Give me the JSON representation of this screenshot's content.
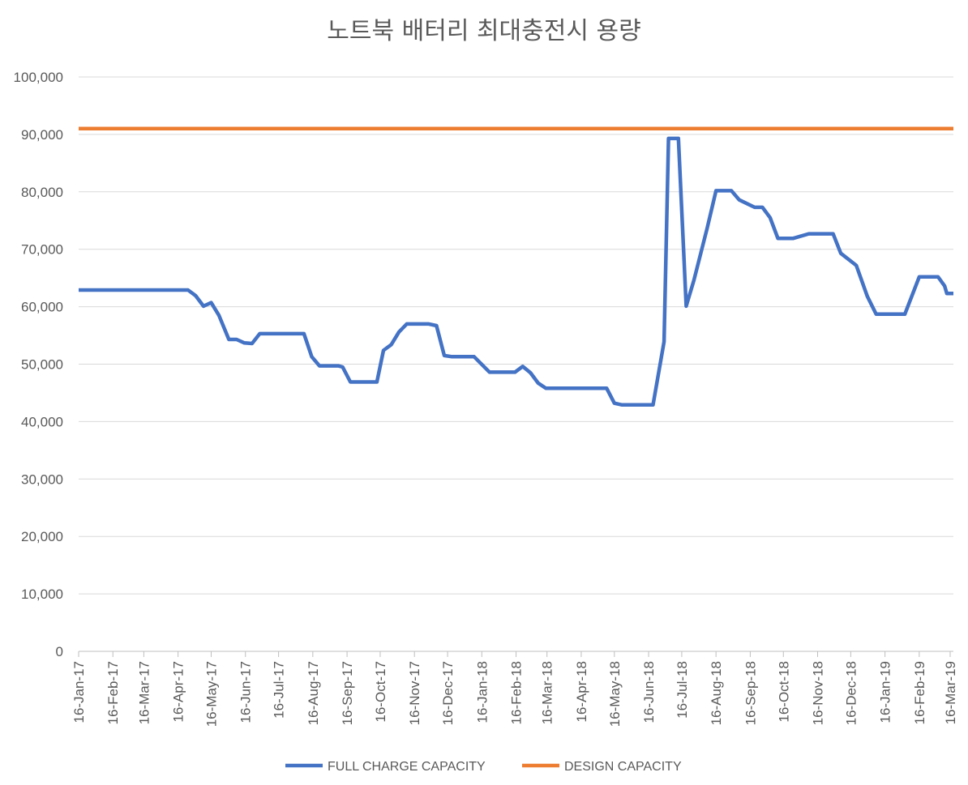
{
  "chart_data": {
    "type": "line",
    "title": "노트북 배터리 최대충전시 용량",
    "xlabel": "",
    "ylabel": "",
    "ylim": [
      0,
      100000
    ],
    "yticks": [
      0,
      10000,
      20000,
      30000,
      40000,
      50000,
      60000,
      70000,
      80000,
      90000,
      100000
    ],
    "ytick_labels": [
      "0",
      "10,000",
      "20,000",
      "30,000",
      "40,000",
      "50,000",
      "60,000",
      "70,000",
      "80,000",
      "90,000",
      "100,000"
    ],
    "xlim": [
      "2017-01-16",
      "2019-03-16"
    ],
    "xticks": [
      "2017-01-16",
      "2017-02-16",
      "2017-03-16",
      "2017-04-16",
      "2017-05-16",
      "2017-06-16",
      "2017-07-16",
      "2017-08-16",
      "2017-09-16",
      "2017-10-16",
      "2017-11-16",
      "2017-12-16",
      "2018-01-16",
      "2018-02-16",
      "2018-03-16",
      "2018-04-16",
      "2018-05-16",
      "2018-06-16",
      "2018-07-16",
      "2018-08-16",
      "2018-09-16",
      "2018-10-16",
      "2018-11-16",
      "2018-12-16",
      "2019-01-16",
      "2019-02-16",
      "2019-03-16"
    ],
    "xtick_labels": [
      "16-Jan-17",
      "16-Feb-17",
      "16-Mar-17",
      "16-Apr-17",
      "16-May-17",
      "16-Jun-17",
      "16-Jul-17",
      "16-Aug-17",
      "16-Sep-17",
      "16-Oct-17",
      "16-Nov-17",
      "16-Dec-17",
      "16-Jan-18",
      "16-Feb-18",
      "16-Mar-18",
      "16-Apr-18",
      "16-May-18",
      "16-Jun-18",
      "16-Jul-18",
      "16-Aug-18",
      "16-Sep-18",
      "16-Oct-18",
      "16-Nov-18",
      "16-Dec-18",
      "16-Jan-19",
      "16-Feb-19",
      "16-Mar-19"
    ],
    "grid": "horizontal",
    "legend_position": "bottom",
    "series": [
      {
        "name": "FULL CHARGE CAPACITY",
        "color": "#4472c4",
        "points": [
          [
            "2017-01-16",
            62900
          ],
          [
            "2017-04-25",
            62900
          ],
          [
            "2017-05-02",
            61900
          ],
          [
            "2017-05-09",
            60100
          ],
          [
            "2017-05-16",
            60700
          ],
          [
            "2017-05-23",
            58500
          ],
          [
            "2017-06-01",
            54300
          ],
          [
            "2017-06-08",
            54300
          ],
          [
            "2017-06-15",
            53700
          ],
          [
            "2017-06-22",
            53600
          ],
          [
            "2017-06-29",
            55300
          ],
          [
            "2017-08-08",
            55300
          ],
          [
            "2017-08-15",
            51300
          ],
          [
            "2017-08-22",
            49700
          ],
          [
            "2017-09-08",
            49700
          ],
          [
            "2017-09-12",
            49500
          ],
          [
            "2017-09-19",
            46900
          ],
          [
            "2017-10-13",
            46900
          ],
          [
            "2017-10-19",
            52400
          ],
          [
            "2017-10-26",
            53400
          ],
          [
            "2017-11-02",
            55600
          ],
          [
            "2017-11-09",
            57000
          ],
          [
            "2017-11-29",
            57000
          ],
          [
            "2017-12-06",
            56700
          ],
          [
            "2017-12-13",
            51500
          ],
          [
            "2017-12-20",
            51300
          ],
          [
            "2018-01-09",
            51300
          ],
          [
            "2018-01-23",
            48600
          ],
          [
            "2018-02-15",
            48600
          ],
          [
            "2018-02-22",
            49600
          ],
          [
            "2018-03-01",
            48500
          ],
          [
            "2018-03-08",
            46700
          ],
          [
            "2018-03-15",
            45800
          ],
          [
            "2018-05-09",
            45800
          ],
          [
            "2018-05-16",
            43200
          ],
          [
            "2018-05-23",
            42900
          ],
          [
            "2018-06-20",
            42900
          ],
          [
            "2018-06-30",
            53900
          ],
          [
            "2018-07-04",
            89300
          ],
          [
            "2018-07-13",
            89300
          ],
          [
            "2018-07-20",
            60100
          ],
          [
            "2018-07-27",
            64600
          ],
          [
            "2018-08-08",
            73700
          ],
          [
            "2018-08-16",
            80200
          ],
          [
            "2018-08-30",
            80200
          ],
          [
            "2018-09-06",
            78600
          ],
          [
            "2018-09-20",
            77300
          ],
          [
            "2018-09-27",
            77300
          ],
          [
            "2018-10-04",
            75500
          ],
          [
            "2018-10-11",
            71900
          ],
          [
            "2018-10-25",
            71900
          ],
          [
            "2018-11-08",
            72700
          ],
          [
            "2018-11-30",
            72700
          ],
          [
            "2018-12-07",
            69300
          ],
          [
            "2018-12-21",
            67200
          ],
          [
            "2018-12-31",
            61800
          ],
          [
            "2019-01-08",
            58700
          ],
          [
            "2019-02-03",
            58700
          ],
          [
            "2019-02-16",
            65200
          ],
          [
            "2019-03-05",
            65200
          ],
          [
            "2019-03-11",
            63600
          ],
          [
            "2019-03-13",
            62300
          ],
          [
            "2019-03-25",
            62300
          ]
        ]
      },
      {
        "name": "DESIGN CAPACITY",
        "color": "#ed7d31",
        "points": [
          [
            "2017-01-16",
            91000
          ],
          [
            "2019-03-25",
            91000
          ]
        ]
      }
    ]
  }
}
